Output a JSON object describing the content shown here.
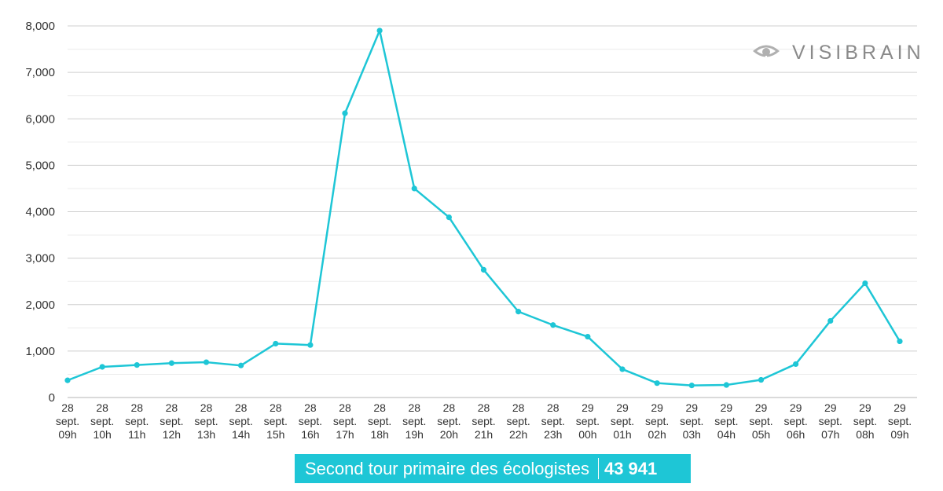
{
  "chart_data": {
    "type": "line",
    "categories": [
      [
        "28",
        "sept.",
        "09h"
      ],
      [
        "28",
        "sept.",
        "10h"
      ],
      [
        "28",
        "sept.",
        "11h"
      ],
      [
        "28",
        "sept.",
        "12h"
      ],
      [
        "28",
        "sept.",
        "13h"
      ],
      [
        "28",
        "sept.",
        "14h"
      ],
      [
        "28",
        "sept.",
        "15h"
      ],
      [
        "28",
        "sept.",
        "16h"
      ],
      [
        "28",
        "sept.",
        "17h"
      ],
      [
        "28",
        "sept.",
        "18h"
      ],
      [
        "28",
        "sept.",
        "19h"
      ],
      [
        "28",
        "sept.",
        "20h"
      ],
      [
        "28",
        "sept.",
        "21h"
      ],
      [
        "28",
        "sept.",
        "22h"
      ],
      [
        "28",
        "sept.",
        "23h"
      ],
      [
        "29",
        "sept.",
        "00h"
      ],
      [
        "29",
        "sept.",
        "01h"
      ],
      [
        "29",
        "sept.",
        "02h"
      ],
      [
        "29",
        "sept.",
        "03h"
      ],
      [
        "29",
        "sept.",
        "04h"
      ],
      [
        "29",
        "sept.",
        "05h"
      ],
      [
        "29",
        "sept.",
        "06h"
      ],
      [
        "29",
        "sept.",
        "07h"
      ],
      [
        "29",
        "sept.",
        "08h"
      ],
      [
        "29",
        "sept.",
        "09h"
      ]
    ],
    "values": [
      370,
      660,
      700,
      740,
      760,
      690,
      1160,
      1130,
      6120,
      7900,
      4500,
      3880,
      2750,
      1850,
      1560,
      1310,
      610,
      310,
      260,
      270,
      380,
      720,
      1650,
      2460,
      1210
    ],
    "ylim": [
      0,
      8000
    ],
    "yticks": [
      "0",
      "1,000",
      "2,000",
      "3,000",
      "4,000",
      "5,000",
      "6,000",
      "7,000",
      "8,000"
    ],
    "grid": true,
    "line_color": "#1ec6d6"
  },
  "logo": {
    "text": "VISIBRAIN"
  },
  "caption": {
    "label": "Second tour primaire des écologistes",
    "count": "43 941"
  }
}
